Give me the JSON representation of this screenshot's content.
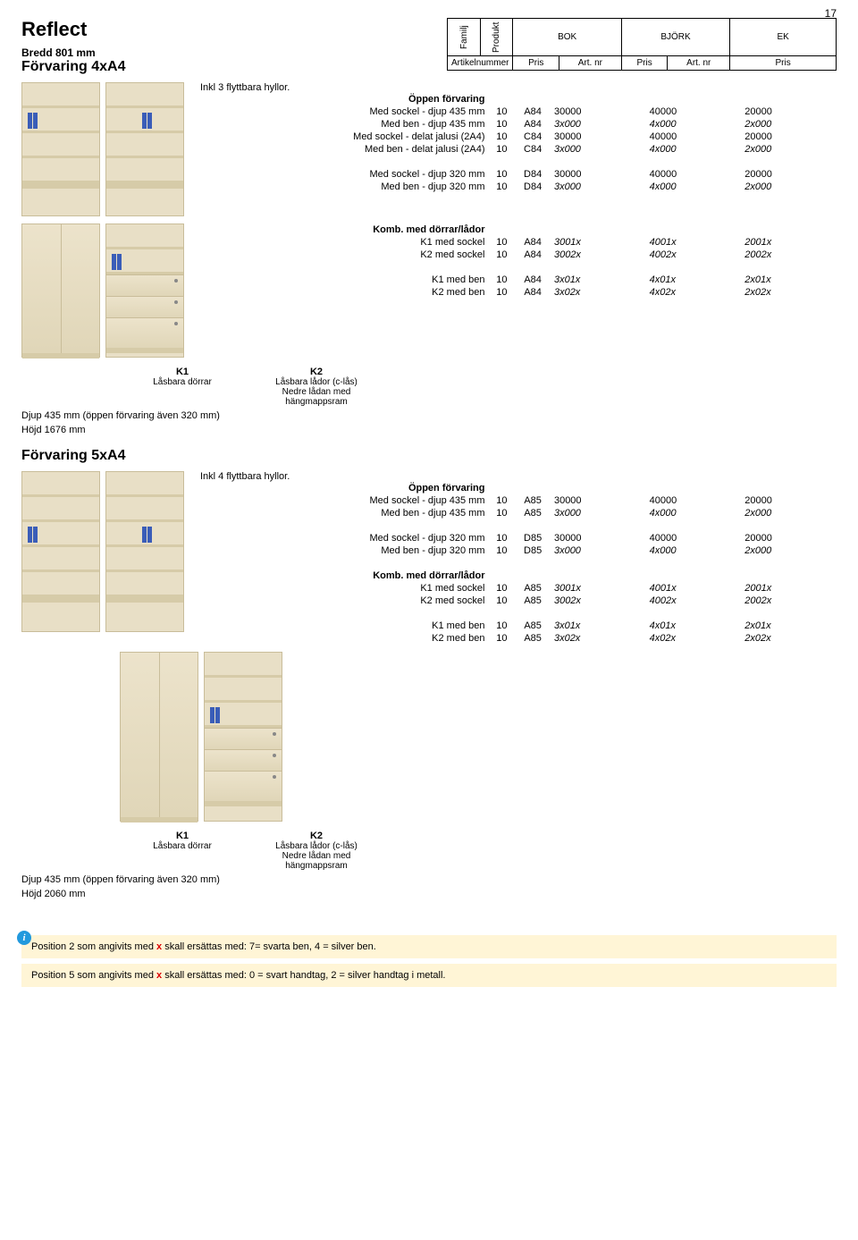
{
  "page_number": "17",
  "brand": "Reflect",
  "header": {
    "familj": "Familj",
    "produkt": "Produkt",
    "materials": [
      "BOK",
      "BJÖRK",
      "EK"
    ],
    "artikelnummer": "Artikelnummer",
    "pris": "Pris",
    "artnr": "Art. nr"
  },
  "sec4": {
    "width_label": "Bredd 801 mm",
    "title": "Förvaring 4xA4",
    "subtitle": "Inkl 3 flyttbara hyllor.",
    "group1_title": "Öppen förvaring",
    "rows1": [
      {
        "desc": "Med sockel - djup 435 mm",
        "fam": "10",
        "prod": "A84",
        "a1": "30000",
        "a2": "40000",
        "a3": "20000",
        "it": false
      },
      {
        "desc": "Med ben - djup 435 mm",
        "fam": "10",
        "prod": "A84",
        "a1": "3x000",
        "a2": "4x000",
        "a3": "2x000",
        "it": true
      },
      {
        "desc": "Med sockel - delat jalusi (2A4)",
        "fam": "10",
        "prod": "C84",
        "a1": "30000",
        "a2": "40000",
        "a3": "20000",
        "it": false
      },
      {
        "desc": "Med ben - delat jalusi (2A4)",
        "fam": "10",
        "prod": "C84",
        "a1": "3x000",
        "a2": "4x000",
        "a3": "2x000",
        "it": true
      }
    ],
    "rows2": [
      {
        "desc": "Med sockel - djup 320 mm",
        "fam": "10",
        "prod": "D84",
        "a1": "30000",
        "a2": "40000",
        "a3": "20000",
        "it": false
      },
      {
        "desc": "Med ben - djup 320 mm",
        "fam": "10",
        "prod": "D84",
        "a1": "3x000",
        "a2": "4x000",
        "a3": "2x000",
        "it": true
      }
    ],
    "group3_title": "Komb. med dörrar/lådor",
    "rows3": [
      {
        "desc": "K1 med sockel",
        "fam": "10",
        "prod": "A84",
        "a1": "3001x",
        "a2": "4001x",
        "a3": "2001x",
        "it": true
      },
      {
        "desc": "K2 med sockel",
        "fam": "10",
        "prod": "A84",
        "a1": "3002x",
        "a2": "4002x",
        "a3": "2002x",
        "it": true
      }
    ],
    "rows4": [
      {
        "desc": "K1 med ben",
        "fam": "10",
        "prod": "A84",
        "a1": "3x01x",
        "a2": "4x01x",
        "a3": "2x01x",
        "it": true
      },
      {
        "desc": "K2 med ben",
        "fam": "10",
        "prod": "A84",
        "a1": "3x02x",
        "a2": "4x02x",
        "a3": "2x02x",
        "it": true
      }
    ],
    "k1_label": "K1",
    "k1_desc": "Låsbara dörrar",
    "k2_label": "K2",
    "k2_desc1": "Låsbara lådor (c-lås)",
    "k2_desc2": "Nedre lådan med",
    "k2_desc3": "hängmappsram",
    "dim": "Djup 435 mm (öppen förvaring även 320 mm)",
    "height": "Höjd 1676 mm"
  },
  "sec5": {
    "title": "Förvaring 5xA4",
    "subtitle": "Inkl 4 flyttbara hyllor.",
    "group1_title": "Öppen förvaring",
    "rows1": [
      {
        "desc": "Med sockel - djup 435 mm",
        "fam": "10",
        "prod": "A85",
        "a1": "30000",
        "a2": "40000",
        "a3": "20000",
        "it": false
      },
      {
        "desc": "Med ben - djup 435 mm",
        "fam": "10",
        "prod": "A85",
        "a1": "3x000",
        "a2": "4x000",
        "a3": "2x000",
        "it": true
      }
    ],
    "rows2": [
      {
        "desc": "Med sockel - djup 320 mm",
        "fam": "10",
        "prod": "D85",
        "a1": "30000",
        "a2": "40000",
        "a3": "20000",
        "it": false
      },
      {
        "desc": "Med ben - djup 320 mm",
        "fam": "10",
        "prod": "D85",
        "a1": "3x000",
        "a2": "4x000",
        "a3": "2x000",
        "it": true
      }
    ],
    "group3_title": "Komb. med dörrar/lådor",
    "rows3": [
      {
        "desc": "K1 med sockel",
        "fam": "10",
        "prod": "A85",
        "a1": "3001x",
        "a2": "4001x",
        "a3": "2001x",
        "it": true
      },
      {
        "desc": "K2 med sockel",
        "fam": "10",
        "prod": "A85",
        "a1": "3002x",
        "a2": "4002x",
        "a3": "2002x",
        "it": true
      }
    ],
    "rows4": [
      {
        "desc": "K1 med ben",
        "fam": "10",
        "prod": "A85",
        "a1": "3x01x",
        "a2": "4x01x",
        "a3": "2x01x",
        "it": true
      },
      {
        "desc": "K2 med ben",
        "fam": "10",
        "prod": "A85",
        "a1": "3x02x",
        "a2": "4x02x",
        "a3": "2x02x",
        "it": true
      }
    ],
    "k1_label": "K1",
    "k1_desc": "Låsbara dörrar",
    "k2_label": "K2",
    "k2_desc1": "Låsbara lådor (c-lås)",
    "k2_desc2": "Nedre lådan med",
    "k2_desc3": "hängmappsram",
    "dim": "Djup 435 mm (öppen förvaring även 320 mm)",
    "height": "Höjd 2060 mm"
  },
  "footer": {
    "line1_a": "Position 2 som angivits med ",
    "line1_x": "x",
    "line1_b": " skall ersättas med: 7= svarta ben, 4 = silver ben.",
    "line2_a": "Position 5 som angivits med ",
    "line2_x": "x",
    "line2_b": " skall ersättas med: 0 = svart handtag, 2 = silver handtag i metall."
  },
  "colors": {
    "wood": "#e8dfc6",
    "wood_dark": "#d6cba8",
    "binder": "#3a5db8",
    "info_bg": "#fff5d6",
    "info_icon": "#2299dd",
    "red": "#d00"
  }
}
